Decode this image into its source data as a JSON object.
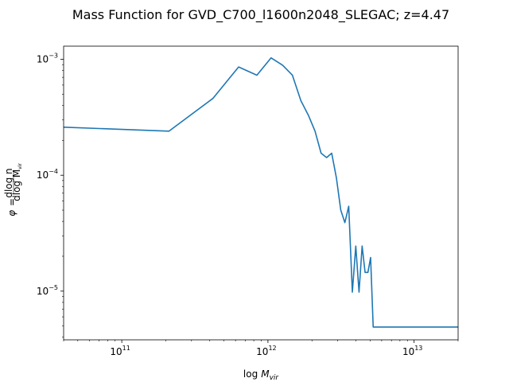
{
  "chart_data": {
    "type": "line",
    "title": "Mass Function for GVD_C700_l1600n2048_SLEGAC; z=4.47",
    "xlabel": "log M_vir",
    "ylabel": "φ = dlog n / dlog M_vir",
    "xscale": "log",
    "yscale": "log",
    "xlim": [
      40000000000.0,
      20000000000000.0
    ],
    "ylim": [
      3.8e-06,
      0.0013
    ],
    "grid": false,
    "x_ticks": [
      {
        "value": 100000000000.0,
        "mantissa": "10",
        "exp": "11"
      },
      {
        "value": 1000000000000.0,
        "mantissa": "10",
        "exp": "12"
      },
      {
        "value": 10000000000000.0,
        "mantissa": "10",
        "exp": "13"
      }
    ],
    "y_ticks": [
      {
        "value": 1e-05,
        "mantissa": "10",
        "exp": "−5"
      },
      {
        "value": 0.0001,
        "mantissa": "10",
        "exp": "−4"
      },
      {
        "value": 0.001,
        "mantissa": "10",
        "exp": "−3"
      }
    ],
    "series": [
      {
        "color": "#1f77b4",
        "x": [
          40000000000.0,
          210000000000.0,
          420000000000.0,
          630000000000.0,
          840000000000.0,
          1050000000000.0,
          1260000000000.0,
          1470000000000.0,
          1680000000000.0,
          1890000000000.0,
          2100000000000.0,
          2310000000000.0,
          2520000000000.0,
          2730000000000.0,
          2940000000000.0,
          3150000000000.0,
          3360000000000.0,
          3570000000000.0,
          3780000000000.0,
          3990000000000.0,
          4200000000000.0,
          4410000000000.0,
          4620000000000.0,
          4830000000000.0,
          5040000000000.0,
          5250000000000.0,
          20000000000000.0
        ],
        "y": [
          0.00026,
          0.00024,
          0.00046,
          0.00086,
          0.00073,
          0.00103,
          0.00089,
          0.00073,
          0.00044,
          0.00033,
          0.00024,
          0.000155,
          0.000142,
          0.000155,
          9.5e-05,
          5e-05,
          3.9e-05,
          5.4e-05,
          9.8e-06,
          2.45e-05,
          9.8e-06,
          2.45e-05,
          1.45e-05,
          1.45e-05,
          1.95e-05,
          4.9e-06,
          4.9e-06
        ]
      }
    ]
  }
}
